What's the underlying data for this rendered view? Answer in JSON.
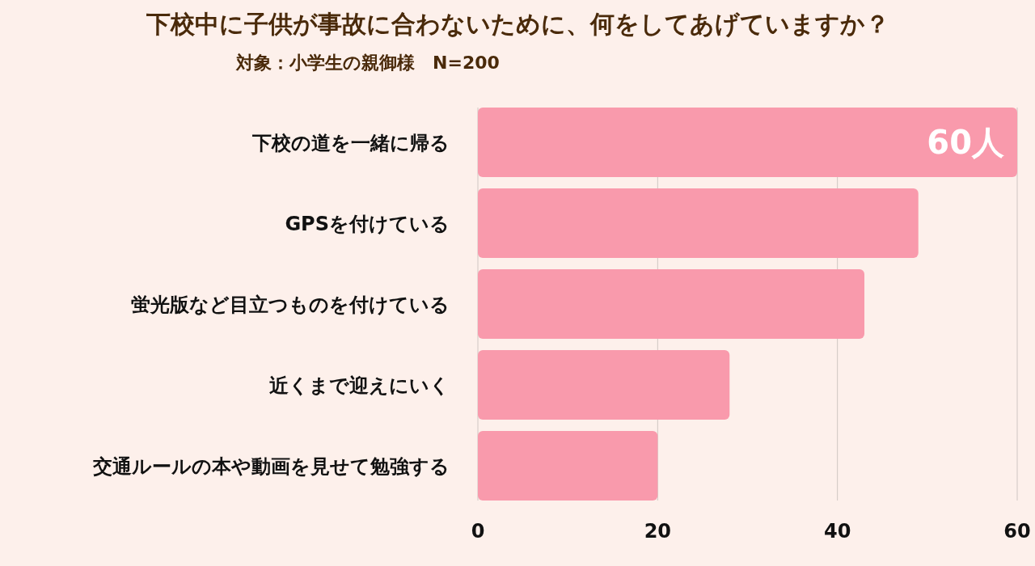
{
  "chart_data": {
    "type": "bar",
    "orientation": "horizontal",
    "title": "下校中に子供が事故に合わないために、何をしてあげていますか？",
    "subtitle": "対象：小学生の親御様　N=200",
    "categories": [
      "下校の道を一緒に帰る",
      "GPSを付けている",
      "蛍光版など目立つものを付けている",
      "近くまで迎えにいく",
      "交通ルールの本や動画を見せて勉強する"
    ],
    "values": [
      60,
      49,
      43,
      28,
      20
    ],
    "value_labels": [
      "60人",
      null,
      null,
      null,
      null
    ],
    "color": "#f99aac",
    "xlim": [
      0,
      60
    ],
    "xticks": [
      0,
      20,
      40,
      60
    ],
    "grid": "x"
  }
}
